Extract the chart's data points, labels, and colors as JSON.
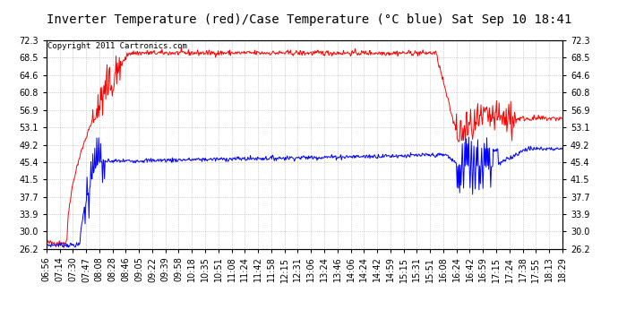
{
  "title": "Inverter Temperature (red)/Case Temperature (°C blue) Sat Sep 10 18:41",
  "copyright": "Copyright 2011 Cartronics.com",
  "background_color": "#ffffff",
  "plot_bg_color": "#ffffff",
  "grid_color": "#aaaaaa",
  "yticks": [
    26.2,
    30.0,
    33.9,
    37.7,
    41.5,
    45.4,
    49.2,
    53.1,
    56.9,
    60.8,
    64.6,
    68.5,
    72.3
  ],
  "ylim": [
    26.2,
    72.3
  ],
  "x_labels": [
    "06:56",
    "07:14",
    "07:30",
    "07:47",
    "08:08",
    "08:28",
    "08:46",
    "09:05",
    "09:22",
    "09:39",
    "09:58",
    "10:18",
    "10:35",
    "10:51",
    "11:08",
    "11:24",
    "11:42",
    "11:58",
    "12:15",
    "12:31",
    "13:06",
    "13:24",
    "13:46",
    "14:06",
    "14:24",
    "14:42",
    "14:59",
    "15:15",
    "15:31",
    "15:51",
    "16:08",
    "16:24",
    "16:42",
    "16:59",
    "17:15",
    "17:24",
    "17:38",
    "17:55",
    "18:13",
    "18:29"
  ],
  "red_color": "#ff0000",
  "blue_color": "#0000ff",
  "title_fontsize": 10,
  "tick_fontsize": 7,
  "copyright_fontsize": 6.5
}
